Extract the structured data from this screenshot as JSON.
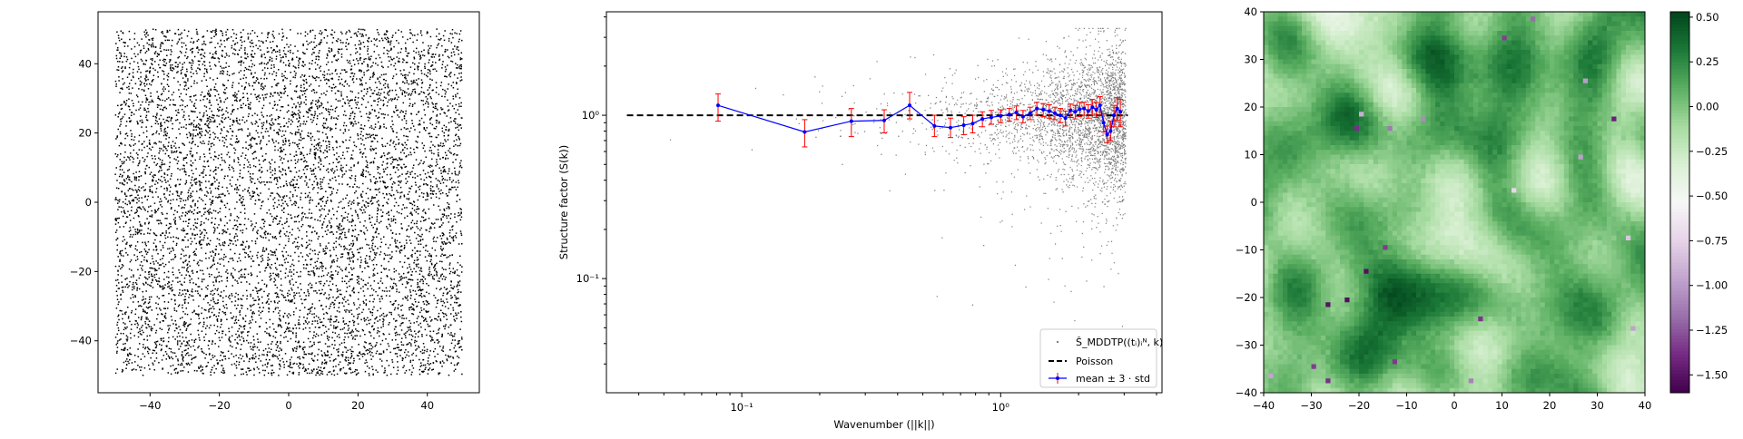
{
  "chart_data": [
    {
      "type": "scatter",
      "title": "",
      "xlabel": "",
      "ylabel": "",
      "xlim": [
        -55,
        55
      ],
      "ylim": [
        -55,
        55
      ],
      "xticks": [
        "−40",
        "−20",
        "0",
        "20",
        "40"
      ],
      "yticks": [
        "−40",
        "−20",
        "0",
        "20",
        "40"
      ],
      "point_color": "#000000",
      "points_description": "approx. 8000 uniformly scattered points in the square [-50, 50] x [-50, 50]",
      "point_count": 8000,
      "sampling_domain": {
        "x": [
          -50,
          50
        ],
        "y": [
          -50,
          50
        ]
      }
    },
    {
      "type": "scatter",
      "title": "",
      "xlabel": "Wavenumber (||k||)",
      "ylabel": "Structure factor (S(k))",
      "xscale": "log",
      "yscale": "log",
      "xlim": [
        0.03,
        4.2
      ],
      "ylim": [
        0.02,
        4.3
      ],
      "xticks": [
        "10⁻¹",
        "10⁰"
      ],
      "yticks": [
        "10⁻¹",
        "10⁰"
      ],
      "legend_position": "lower right",
      "legend": {
        "scatter": "Ŝ_MDDTP((tᵢ)ᵢᴺ, k)",
        "poisson": "Poisson",
        "mean": "mean ± 3 · std"
      },
      "poisson_line": {
        "x": [
          0.036,
          3.1
        ],
        "y": 1.0,
        "color": "#000000",
        "style": "dashed"
      },
      "binned_mean": {
        "color": "#0000ff",
        "errorbar_color": "#ff0000",
        "x": [
          0.081,
          0.175,
          0.265,
          0.355,
          0.445,
          0.555,
          0.64,
          0.72,
          0.78,
          0.85,
          0.92,
          1.0,
          1.08,
          1.15,
          1.22,
          1.3,
          1.38,
          1.46,
          1.54,
          1.62,
          1.7,
          1.78,
          1.86,
          1.94,
          2.02,
          2.1,
          2.18,
          2.26,
          2.34,
          2.42,
          2.5,
          2.58,
          2.66,
          2.74,
          2.82,
          2.9
        ],
        "y": [
          1.15,
          0.79,
          0.92,
          0.93,
          1.15,
          0.86,
          0.84,
          0.87,
          0.89,
          0.95,
          0.97,
          0.99,
          1.01,
          1.04,
          0.98,
          1.03,
          1.1,
          1.08,
          1.06,
          1.03,
          1.0,
          0.96,
          1.07,
          1.05,
          1.09,
          1.1,
          1.06,
          1.12,
          1.08,
          1.15,
          0.9,
          0.76,
          0.8,
          1.0,
          1.1,
          1.05
        ],
        "err_low": [
          0.92,
          0.64,
          0.74,
          0.78,
          0.95,
          0.74,
          0.73,
          0.76,
          0.78,
          0.85,
          0.88,
          0.9,
          0.92,
          0.94,
          0.9,
          0.94,
          1.0,
          0.98,
          0.96,
          0.94,
          0.9,
          0.86,
          0.97,
          0.95,
          0.98,
          1.0,
          0.96,
          1.0,
          0.97,
          1.0,
          0.79,
          0.68,
          0.7,
          0.85,
          0.93,
          0.85
        ],
        "err_high": [
          1.35,
          0.94,
          1.1,
          1.08,
          1.38,
          1.0,
          0.96,
          0.98,
          1.0,
          1.05,
          1.07,
          1.08,
          1.1,
          1.14,
          1.07,
          1.12,
          1.2,
          1.18,
          1.16,
          1.12,
          1.1,
          1.06,
          1.17,
          1.15,
          1.2,
          1.2,
          1.16,
          1.25,
          1.2,
          1.3,
          1.02,
          0.86,
          0.92,
          1.15,
          1.28,
          1.25
        ]
      },
      "scatter_color": "#808080",
      "scatter_description": "approx. 3000 grey points, density increasing with wavenumber, log-normal spread around 1",
      "scatter_count": 3000
    },
    {
      "type": "heatmap",
      "title": "",
      "xlabel": "",
      "ylabel": "",
      "xlim": [
        -40,
        40
      ],
      "ylim": [
        -40,
        40
      ],
      "xticks": [
        "−40",
        "−30",
        "−20",
        "−10",
        "0",
        "10",
        "20",
        "30",
        "40"
      ],
      "yticks": [
        "−40",
        "−30",
        "−20",
        "−10",
        "0",
        "10",
        "20",
        "30",
        "40"
      ],
      "grid_size": 80,
      "colormap": "PRGn",
      "colormap_colors": [
        "#40004b",
        "#762a83",
        "#9970ab",
        "#c2a5cf",
        "#e7d4e8",
        "#f7f7f7",
        "#d9f0d3",
        "#a6dba0",
        "#5aae61",
        "#1b7837",
        "#00441b"
      ],
      "vmin": -1.6,
      "vmax": 0.53,
      "colorbar_ticks": [
        0.5,
        0.25,
        0.0,
        -0.25,
        -0.5,
        -0.75,
        -1.0,
        -1.25,
        -1.5
      ],
      "colorbar_tick_labels": [
        "0.50",
        "0.25",
        "0.00",
        "−0.25",
        "−0.50",
        "−0.75",
        "−1.00",
        "−1.25",
        "−1.50"
      ],
      "value_description": "smooth random field, mostly in [-0.4, 0.5], with a few isolated negative spikes near -1.5"
    }
  ]
}
